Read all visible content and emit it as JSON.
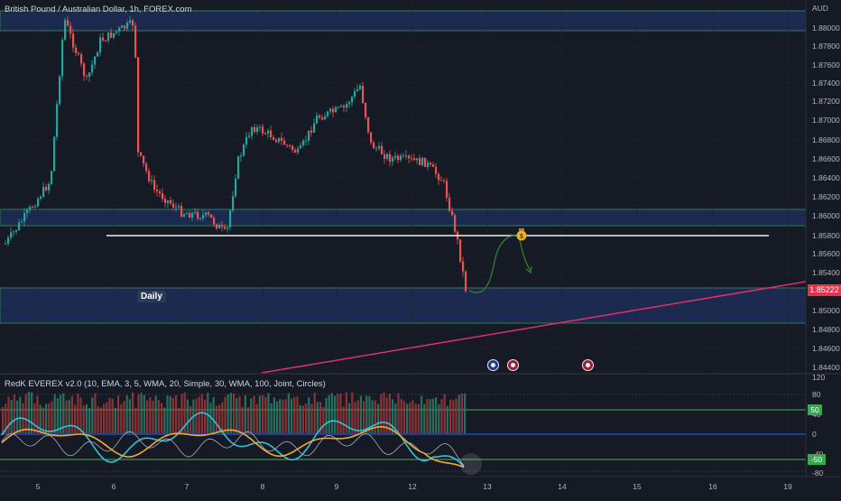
{
  "header": {
    "symbol_title": "British Pound / Australian Dollar, 1h, FOREX.com"
  },
  "price_axis": {
    "currency": "AUD",
    "labels": [
      "1.88000",
      "1.87800",
      "1.87600",
      "1.87400",
      "1.87200",
      "1.87000",
      "1.86800",
      "1.86600",
      "1.86400",
      "1.86200",
      "1.86000",
      "1.85800",
      "1.85600",
      "1.85400",
      "1.85000",
      "1.84800",
      "1.84600",
      "1.84400"
    ],
    "current_price": "1.85222"
  },
  "indicator": {
    "title": "RedK EVEREX v2.0 (10, EMA, 3, 5, WMA, 20, Simple, 30, WMA, 100, Joint, Circles)",
    "axis_labels": [
      "120",
      "80",
      "40",
      "0",
      "-40",
      "-80"
    ],
    "level_high_badge": "50",
    "level_low_badge": "-50"
  },
  "time_axis": {
    "labels": [
      "5",
      "6",
      "7",
      "8",
      "9",
      "12",
      "13",
      "14",
      "15",
      "16",
      "19"
    ]
  },
  "annotations": {
    "daily_label": "Daily",
    "target_icon": "money-bag-icon"
  },
  "events": [
    {
      "name": "economic-event-au-icon",
      "flag": "au"
    },
    {
      "name": "economic-event-uk-icon",
      "flag": "uk"
    },
    {
      "name": "economic-event-uk-icon-2",
      "flag": "uk"
    }
  ],
  "colors": {
    "background": "#161a25",
    "zone_fill": "#1b2a4e",
    "zone_border": "#2e7d52",
    "bull": "#26a69a",
    "bear": "#ef5350",
    "trendline": "#e0306a",
    "hline": "#e6f2f5",
    "path_sketch": "#2e7d32",
    "price_badge": "#e4344a",
    "signal_line": "#f0a93a",
    "fast_line": "#38c0d8"
  }
}
